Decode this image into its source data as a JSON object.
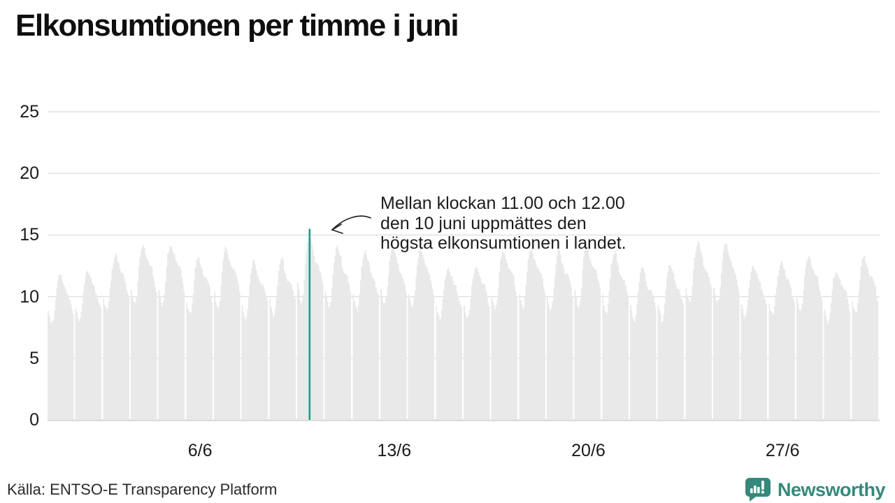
{
  "page": {
    "title": "Elkonsumtionen per timme i juni",
    "annotation": {
      "line1": "Mellan klockan 11.00 och 12.00",
      "line2": "den 10 juni uppmättes den",
      "line3": "högsta elkonsumtionen i landet."
    },
    "footer": {
      "source": "Källa: ENTSO-E Transparency Platform",
      "brand": "Newsworthy"
    }
  },
  "chart_data": {
    "type": "bar",
    "title": "Elkonsumtionen per timme i juni",
    "xlabel": "",
    "ylabel": "",
    "ylim": [
      0,
      25
    ],
    "yticks": [
      "0",
      "5",
      "10",
      "15",
      "20",
      "25"
    ],
    "ytick_values": [
      0,
      5,
      10,
      15,
      20,
      25
    ],
    "xticks": [
      {
        "label": "6/6",
        "day": 6
      },
      {
        "label": "13/6",
        "day": 13
      },
      {
        "label": "20/6",
        "day": 20
      },
      {
        "label": "27/6",
        "day": 27
      }
    ],
    "grid": "horizontal",
    "legend": "none",
    "days": 30,
    "hours_per_day": 24,
    "hourly_shape": [
      0.74,
      0.7,
      0.67,
      0.65,
      0.66,
      0.7,
      0.77,
      0.85,
      0.92,
      0.96,
      0.99,
      1.0,
      0.98,
      0.95,
      0.93,
      0.9,
      0.88,
      0.87,
      0.86,
      0.85,
      0.83,
      0.8,
      0.77,
      0.74
    ],
    "daily_peaks": [
      11.8,
      12.2,
      13.5,
      14.3,
      14.4,
      13.2,
      14.0,
      12.8,
      13.0,
      14.8,
      14.0,
      13.6,
      14.1,
      13.9,
      12.4,
      12.6,
      13.8,
      14.0,
      13.7,
      14.2,
      13.5,
      12.3,
      12.5,
      14.4,
      14.3,
      12.6,
      12.9,
      13.4,
      12.2,
      13.3
    ],
    "jitter": [
      0.12,
      -0.18,
      0.06,
      0.22,
      -0.1,
      0.15,
      -0.22,
      0.02,
      0.25,
      -0.06,
      0.1,
      -0.25,
      0.18,
      0.04,
      -0.12,
      0.16,
      -0.2,
      0.08,
      0.0,
      -0.15,
      0.24,
      -0.04,
      0.05,
      -0.21
    ],
    "highlight": {
      "day": 10,
      "hour": 11,
      "value": 15.5,
      "note": "Mellan klockan 11.00 och 12.00 den 10 juni uppmättes den högsta elkonsumtionen i landet."
    },
    "colors": {
      "bar": "#e9e9e9",
      "highlight": "#1a9e8a",
      "gridline": "#e0e0e0",
      "baseline": "#d6d6d6",
      "brand_teal": "#35897c",
      "text": "#1b1b1b"
    }
  }
}
